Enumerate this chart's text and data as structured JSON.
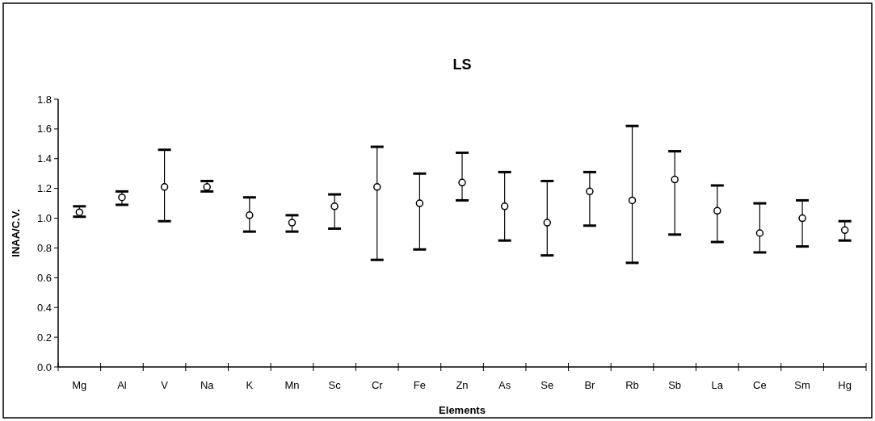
{
  "chart_data": {
    "type": "scatter",
    "title": "LS",
    "xlabel": "Elements",
    "ylabel": "INAA/C.V.",
    "categories": [
      "Mg",
      "Al",
      "V",
      "Na",
      "K",
      "Mn",
      "Sc",
      "Cr",
      "Fe",
      "Zn",
      "As",
      "Se",
      "Br",
      "Rb",
      "Sb",
      "La",
      "Ce",
      "Sm",
      "Hg"
    ],
    "series": [
      {
        "color": "#000000",
        "values": [
          1.04,
          1.14,
          1.21,
          1.21,
          1.02,
          0.97,
          1.08,
          1.21,
          1.1,
          1.24,
          1.08,
          0.97,
          1.18,
          1.12,
          1.26,
          1.05,
          0.9,
          1.0,
          0.92
        ],
        "errors": [
          [
            1.01,
            1.08
          ],
          [
            1.09,
            1.18
          ],
          [
            0.98,
            1.46
          ],
          [
            1.18,
            1.25
          ],
          [
            0.91,
            1.14
          ],
          [
            0.91,
            1.02
          ],
          [
            0.93,
            1.16
          ],
          [
            0.72,
            1.48
          ],
          [
            0.79,
            1.3
          ],
          [
            1.12,
            1.44
          ],
          [
            0.85,
            1.31
          ],
          [
            0.75,
            1.25
          ],
          [
            0.95,
            1.31
          ],
          [
            0.7,
            1.62
          ],
          [
            0.89,
            1.45
          ],
          [
            0.84,
            1.22
          ],
          [
            0.77,
            1.1
          ],
          [
            0.81,
            1.12
          ],
          [
            0.85,
            0.98
          ]
        ]
      }
    ],
    "ylim": [
      0,
      1.8
    ],
    "yticks": [
      {
        "value": 0,
        "label": "0.0"
      },
      0.2,
      0.4,
      0.6,
      0.8,
      {
        "value": 1,
        "label": "1.0"
      },
      1.2,
      1.4,
      1.6,
      1.8
    ],
    "marker": "circle",
    "grid": false
  }
}
